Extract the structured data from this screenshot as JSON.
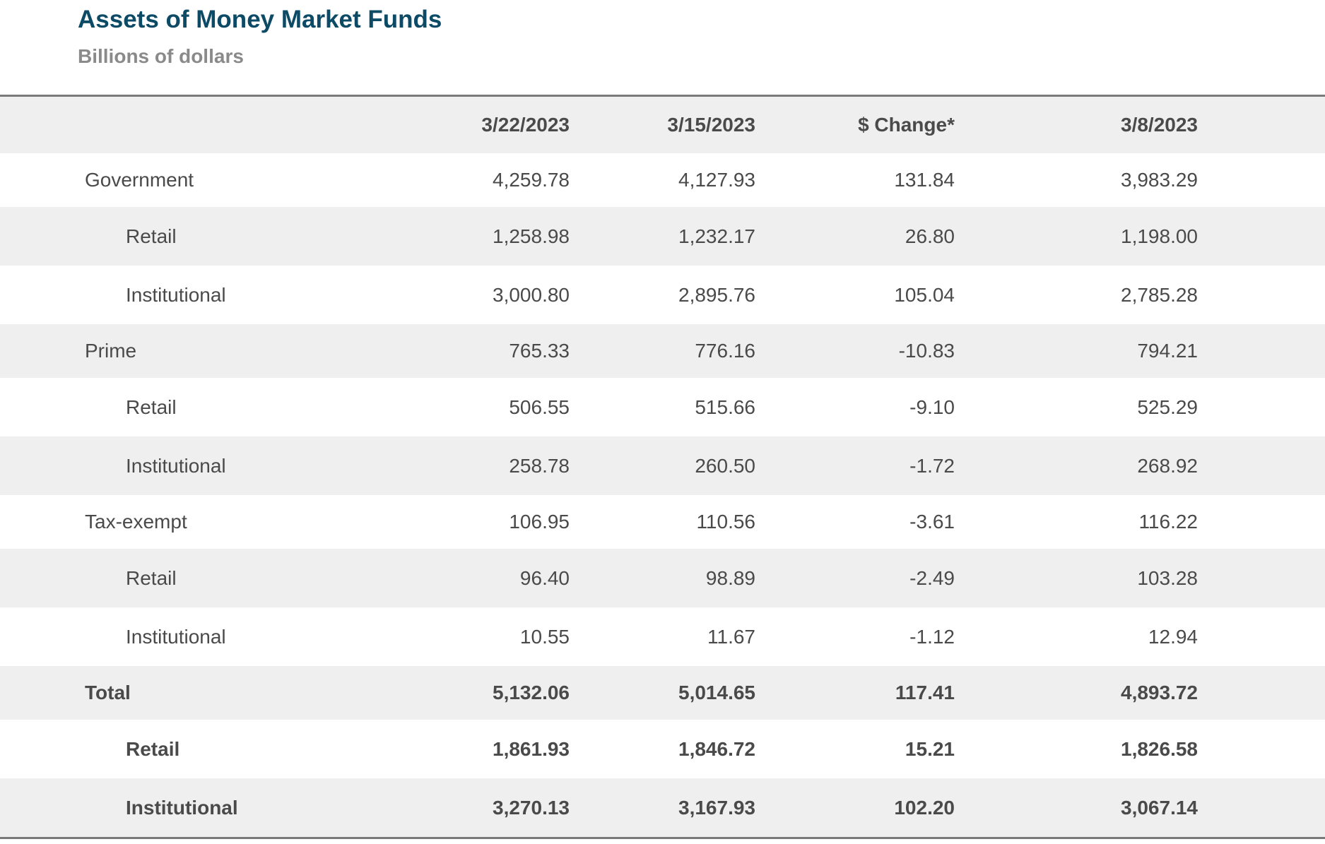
{
  "header": {
    "title": "Assets of Money Market Funds",
    "subtitle": "Billions of dollars"
  },
  "chart_data": {
    "type": "table",
    "title": "Assets of Money Market Funds",
    "subtitle": "Billions of dollars",
    "columns": [
      "",
      "3/22/2023",
      "3/15/2023",
      "$ Change*",
      "3/8/2023"
    ],
    "rows": [
      {
        "label": "Government",
        "values": [
          "4,259.78",
          "4,127.93",
          "131.84",
          "3,983.29"
        ]
      },
      {
        "label": "Retail",
        "values": [
          "1,258.98",
          "1,232.17",
          "26.80",
          "1,198.00"
        ]
      },
      {
        "label": "Institutional",
        "values": [
          "3,000.80",
          "2,895.76",
          "105.04",
          "2,785.28"
        ]
      },
      {
        "label": "Prime",
        "values": [
          "765.33",
          "776.16",
          "-10.83",
          "794.21"
        ]
      },
      {
        "label": "Retail",
        "values": [
          "506.55",
          "515.66",
          "-9.10",
          "525.29"
        ]
      },
      {
        "label": "Institutional",
        "values": [
          "258.78",
          "260.50",
          "-1.72",
          "268.92"
        ]
      },
      {
        "label": "Tax-exempt",
        "values": [
          "106.95",
          "110.56",
          "-3.61",
          "116.22"
        ]
      },
      {
        "label": "Retail",
        "values": [
          "96.40",
          "98.89",
          "-2.49",
          "103.28"
        ]
      },
      {
        "label": "Institutional",
        "values": [
          "10.55",
          "11.67",
          "-1.12",
          "12.94"
        ]
      },
      {
        "label": "Total",
        "values": [
          "5,132.06",
          "5,014.65",
          "117.41",
          "4,893.72"
        ]
      },
      {
        "label": "Retail",
        "values": [
          "1,861.93",
          "1,846.72",
          "15.21",
          "1,826.58"
        ]
      },
      {
        "label": "Institutional",
        "values": [
          "3,270.13",
          "3,167.93",
          "102.20",
          "3,067.14"
        ]
      }
    ]
  }
}
